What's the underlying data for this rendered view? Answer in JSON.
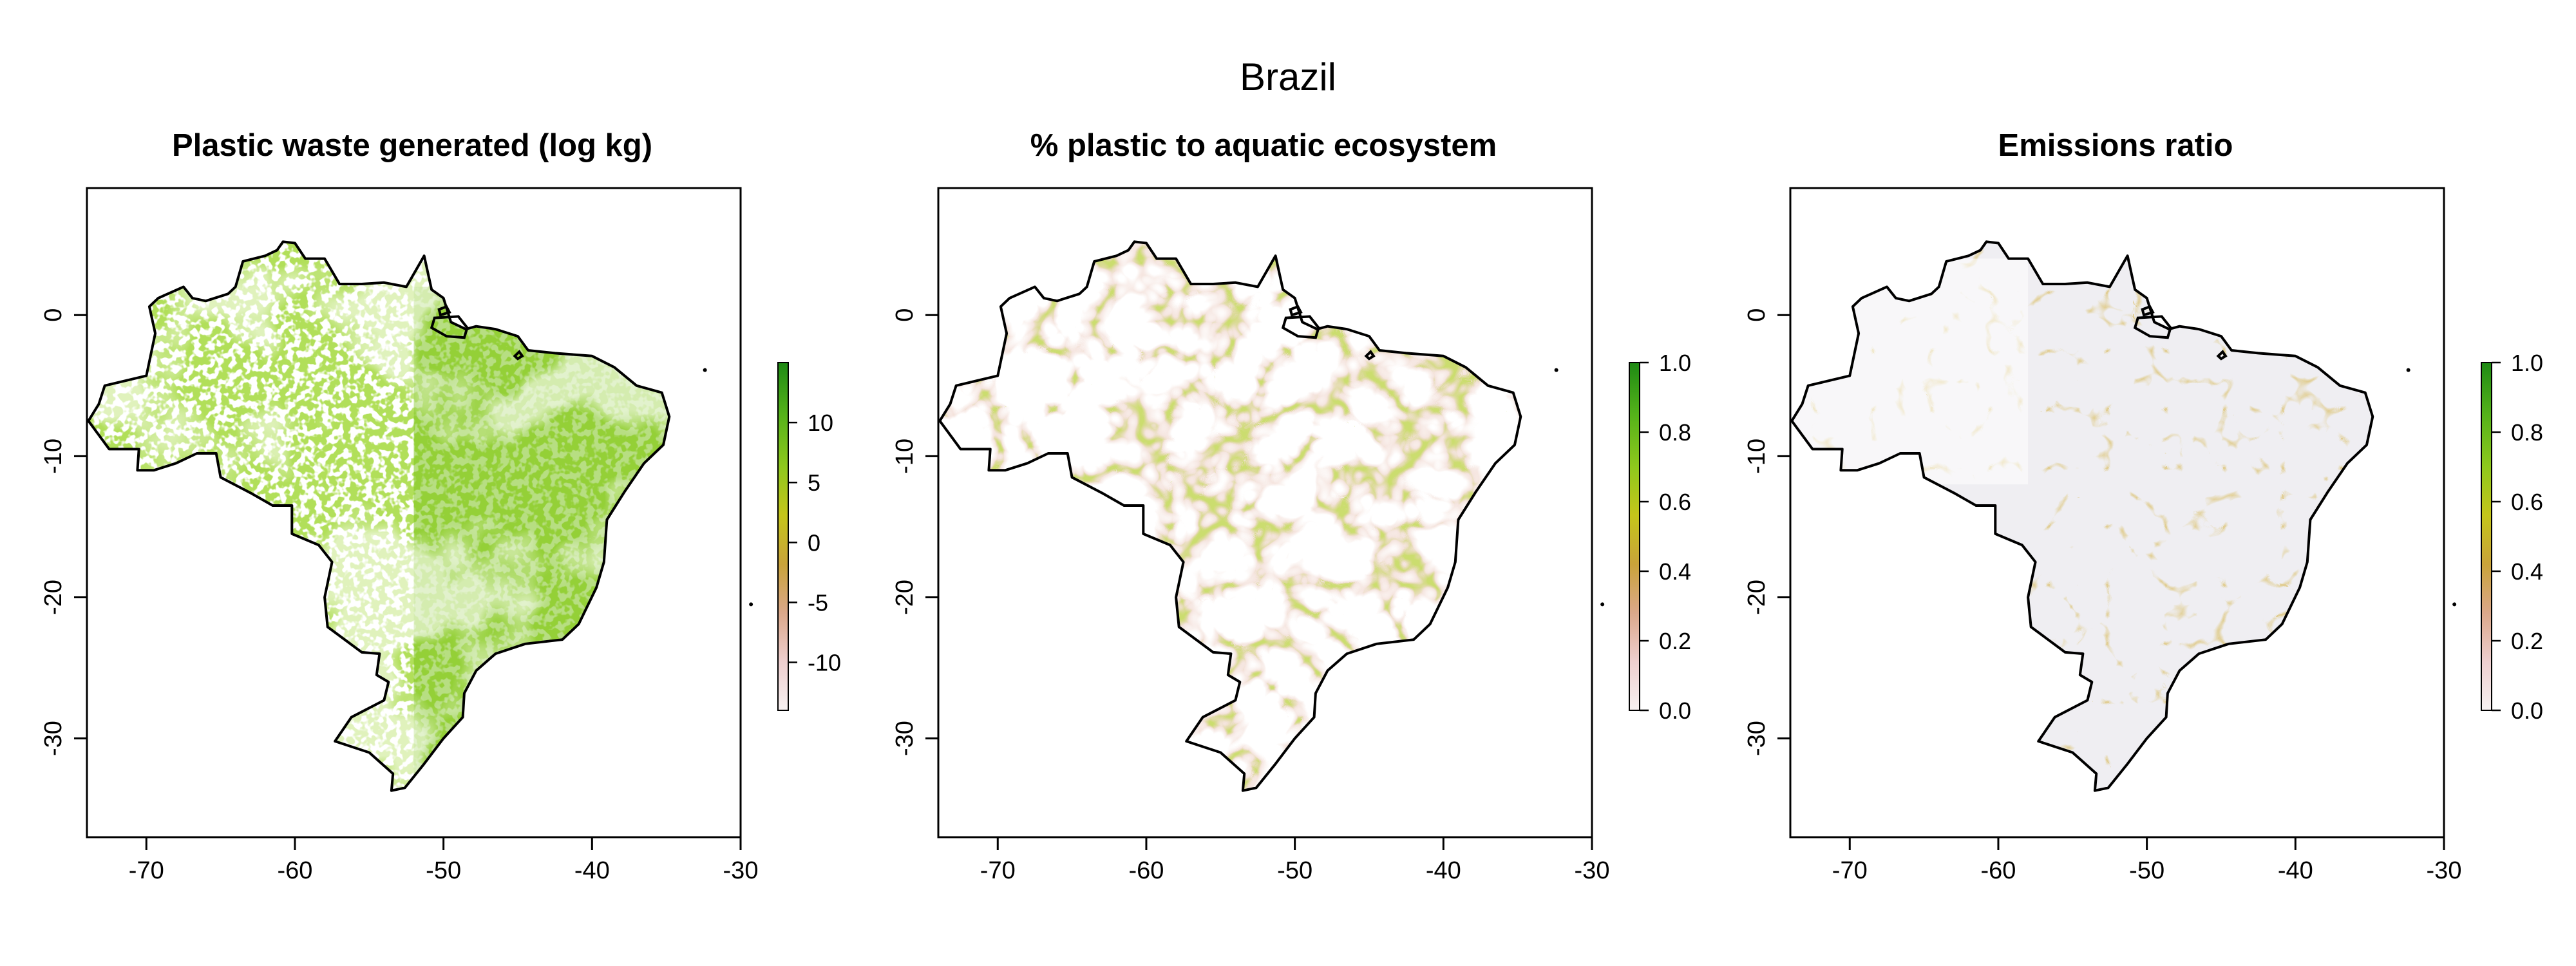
{
  "figure": {
    "title": "Brazil"
  },
  "colors": {
    "ramp": [
      "#f7f1f1",
      "#eecfcf",
      "#dba88a",
      "#c9a33a",
      "#c5c51b",
      "#8fc81d",
      "#55b21a",
      "#1e8a14"
    ],
    "land_background": "#ffffff",
    "border": "#000000",
    "gray_shade": "#ecebf0"
  },
  "panels": [
    {
      "title": "Plastic waste generated (log kg)",
      "legend_ticks": [
        "10",
        "5",
        "0",
        "-5",
        "-10"
      ],
      "legend_tick_values": [
        10,
        5,
        0,
        -5,
        -10
      ],
      "legend_range": [
        -14,
        15
      ]
    },
    {
      "title": "% plastic to aquatic ecosystem",
      "legend_ticks": [
        "1.0",
        "0.8",
        "0.6",
        "0.4",
        "0.2",
        "0.0"
      ],
      "legend_tick_values": [
        1.0,
        0.8,
        0.6,
        0.4,
        0.2,
        0.0
      ],
      "legend_range": [
        0,
        1
      ]
    },
    {
      "title": "Emissions ratio",
      "legend_ticks": [
        "1.0",
        "0.8",
        "0.6",
        "0.4",
        "0.2",
        "0.0"
      ],
      "legend_tick_values": [
        1.0,
        0.8,
        0.6,
        0.4,
        0.2,
        0.0
      ],
      "legend_range": [
        0,
        1
      ]
    }
  ],
  "axes": {
    "x_range": [
      -74,
      -30
    ],
    "y_range": [
      -37,
      9
    ],
    "x_ticks": [
      "-70",
      "-60",
      "-50",
      "-40",
      "-30"
    ],
    "x_tick_values": [
      -70,
      -60,
      -50,
      -40,
      -30
    ],
    "y_ticks": [
      "0",
      "-10",
      "-20",
      "-30"
    ],
    "y_tick_values": [
      0,
      -10,
      -20,
      -30
    ]
  },
  "outline": [
    [
      -60.0,
      5.1
    ],
    [
      -59.3,
      4.0
    ],
    [
      -58.0,
      4.0
    ],
    [
      -57.0,
      2.2
    ],
    [
      -55.5,
      2.2
    ],
    [
      -54.0,
      2.3
    ],
    [
      -52.5,
      2.0
    ],
    [
      -51.3,
      4.2
    ],
    [
      -50.8,
      1.8
    ],
    [
      -50.0,
      1.2
    ],
    [
      -49.5,
      -0.5
    ],
    [
      -48.5,
      -1.0
    ],
    [
      -47.8,
      -0.8
    ],
    [
      -46.5,
      -1.0
    ],
    [
      -45.0,
      -1.5
    ],
    [
      -44.3,
      -2.5
    ],
    [
      -42.5,
      -2.7
    ],
    [
      -40.0,
      -2.9
    ],
    [
      -38.5,
      -3.7
    ],
    [
      -37.0,
      -5.0
    ],
    [
      -35.3,
      -5.5
    ],
    [
      -34.8,
      -7.2
    ],
    [
      -35.2,
      -9.2
    ],
    [
      -36.5,
      -10.5
    ],
    [
      -37.8,
      -12.5
    ],
    [
      -39.0,
      -14.5
    ],
    [
      -39.2,
      -17.5
    ],
    [
      -39.7,
      -19.3
    ],
    [
      -40.9,
      -21.9
    ],
    [
      -42.0,
      -23.0
    ],
    [
      -44.5,
      -23.3
    ],
    [
      -46.5,
      -24.0
    ],
    [
      -47.8,
      -25.2
    ],
    [
      -48.6,
      -26.8
    ],
    [
      -48.7,
      -28.5
    ],
    [
      -50.0,
      -30.0
    ],
    [
      -51.3,
      -31.8
    ],
    [
      -52.6,
      -33.5
    ],
    [
      -53.5,
      -33.7
    ],
    [
      -53.4,
      -32.5
    ],
    [
      -55.0,
      -31.0
    ],
    [
      -57.3,
      -30.2
    ],
    [
      -56.2,
      -28.5
    ],
    [
      -54.0,
      -27.3
    ],
    [
      -53.7,
      -26.0
    ],
    [
      -54.5,
      -25.5
    ],
    [
      -54.3,
      -24.0
    ],
    [
      -55.5,
      -23.9
    ],
    [
      -57.8,
      -22.1
    ],
    [
      -58.0,
      -20.0
    ],
    [
      -57.5,
      -17.5
    ],
    [
      -58.4,
      -16.3
    ],
    [
      -60.2,
      -15.5
    ],
    [
      -60.2,
      -13.5
    ],
    [
      -61.5,
      -13.5
    ],
    [
      -63.0,
      -12.6
    ],
    [
      -65.0,
      -11.5
    ],
    [
      -65.3,
      -9.8
    ],
    [
      -66.6,
      -9.8
    ],
    [
      -68.0,
      -10.5
    ],
    [
      -69.5,
      -11.0
    ],
    [
      -70.6,
      -11.0
    ],
    [
      -70.5,
      -9.5
    ],
    [
      -72.5,
      -9.5
    ],
    [
      -73.9,
      -7.5
    ],
    [
      -73.2,
      -6.3
    ],
    [
      -72.8,
      -5.0
    ],
    [
      -70.0,
      -4.3
    ],
    [
      -69.4,
      -1.3
    ],
    [
      -69.8,
      0.6
    ],
    [
      -69.2,
      1.2
    ],
    [
      -67.5,
      2.0
    ],
    [
      -66.9,
      1.2
    ],
    [
      -66.0,
      1.0
    ],
    [
      -64.5,
      1.5
    ],
    [
      -64.0,
      2.0
    ],
    [
      -63.5,
      3.8
    ],
    [
      -62.0,
      4.2
    ],
    [
      -61.2,
      4.6
    ],
    [
      -60.8,
      5.2
    ]
  ],
  "islands": [
    [
      [
        -50.6,
        -0.2
      ],
      [
        -49.0,
        -0.1
      ],
      [
        -48.4,
        -0.9
      ],
      [
        -48.6,
        -1.6
      ],
      [
        -49.8,
        -1.5
      ],
      [
        -50.8,
        -0.9
      ]
    ],
    [
      [
        -50.3,
        0.4
      ],
      [
        -49.8,
        0.6
      ],
      [
        -49.6,
        0.2
      ],
      [
        -50.2,
        0.0
      ]
    ],
    [
      [
        -45.2,
        -2.9
      ],
      [
        -44.9,
        -2.6
      ],
      [
        -44.7,
        -2.9
      ],
      [
        -45.0,
        -3.1
      ]
    ]
  ],
  "points": [
    [
      -32.4,
      -3.9
    ],
    [
      -29.3,
      -20.5
    ]
  ]
}
